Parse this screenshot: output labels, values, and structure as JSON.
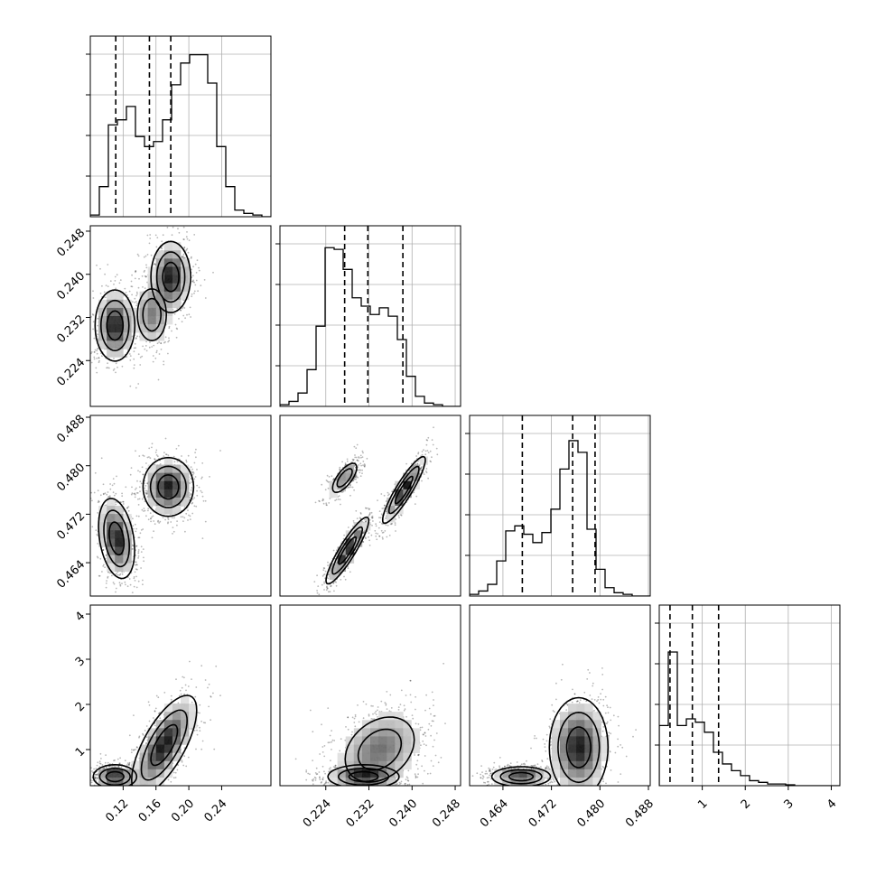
{
  "chart_data": {
    "type": "corner",
    "variables": [
      {
        "range": [
          0.08,
          0.3
        ],
        "ticks": [
          0.12,
          0.16,
          0.2,
          0.24
        ],
        "tick_labels": [
          "0.12",
          "0.16",
          "0.20",
          "0.24"
        ],
        "quantiles": [
          0.111,
          0.152,
          0.178
        ],
        "hist": [
          0.01,
          0.18,
          0.55,
          0.58,
          0.66,
          0.48,
          0.42,
          0.45,
          0.58,
          0.79,
          0.92,
          0.97,
          0.97,
          0.8,
          0.42,
          0.18,
          0.04,
          0.02,
          0.01,
          0.0
        ]
      },
      {
        "range": [
          0.2155,
          0.249
        ],
        "ticks": [
          0.224,
          0.232,
          0.24,
          0.248
        ],
        "tick_labels": [
          "0.224",
          "0.232",
          "0.240",
          "0.248"
        ],
        "quantiles": [
          0.2275,
          0.2318,
          0.2383
        ],
        "hist": [
          0.01,
          0.03,
          0.08,
          0.22,
          0.48,
          0.95,
          0.94,
          0.82,
          0.65,
          0.6,
          0.55,
          0.59,
          0.54,
          0.4,
          0.18,
          0.06,
          0.02,
          0.01,
          0.0,
          0.0
        ]
      },
      {
        "range": [
          0.4585,
          0.4883
        ],
        "ticks": [
          0.464,
          0.472,
          0.48,
          0.488
        ],
        "tick_labels": [
          "0.464",
          "0.472",
          "0.480",
          "0.488"
        ],
        "quantiles": [
          0.4672,
          0.4755,
          0.4792
        ],
        "hist": [
          0.01,
          0.03,
          0.07,
          0.21,
          0.39,
          0.42,
          0.37,
          0.32,
          0.38,
          0.52,
          0.76,
          0.93,
          0.86,
          0.4,
          0.16,
          0.05,
          0.02,
          0.01,
          0.0,
          0.0
        ]
      },
      {
        "range": [
          0.0,
          4.2
        ],
        "ticks": [
          1,
          2,
          3,
          4
        ],
        "tick_labels": [
          "1",
          "2",
          "3",
          "4"
        ],
        "quantiles": [
          0.25,
          0.77,
          1.38
        ],
        "hist": [
          0.36,
          0.8,
          0.36,
          0.4,
          0.38,
          0.32,
          0.2,
          0.13,
          0.09,
          0.06,
          0.03,
          0.02,
          0.01,
          0.01,
          0.005,
          0.0,
          0.0,
          0.0,
          0.0,
          0.0
        ],
        "row_ticks": [
          1,
          2,
          3,
          4
        ],
        "row_tick_labels": [
          "1",
          "2",
          "3",
          "4"
        ],
        "row_range": [
          0.2,
          4.2
        ]
      }
    ],
    "pairs": [
      {
        "x": 0,
        "y": 1,
        "clusters": [
          {
            "cx": 0.11,
            "cy": 0.2305,
            "sx": 0.011,
            "sy": 0.003,
            "rho": 0.0,
            "w": 1.0
          },
          {
            "cx": 0.178,
            "cy": 0.2395,
            "sx": 0.011,
            "sy": 0.003,
            "rho": 0.0,
            "w": 1.0
          },
          {
            "cx": 0.155,
            "cy": 0.2325,
            "sx": 0.011,
            "sy": 0.003,
            "rho": 0.0,
            "w": 0.55
          }
        ]
      },
      {
        "x": 0,
        "y": 2,
        "clusters": [
          {
            "cx": 0.112,
            "cy": 0.468,
            "sx": 0.01,
            "sy": 0.003,
            "rho": -0.3,
            "w": 1.0
          },
          {
            "cx": 0.175,
            "cy": 0.4765,
            "sx": 0.014,
            "sy": 0.0022,
            "rho": 0.0,
            "w": 1.0
          }
        ]
      },
      {
        "x": 1,
        "y": 2,
        "clusters": [
          {
            "cx": 0.228,
            "cy": 0.466,
            "sx": 0.0018,
            "sy": 0.0025,
            "rho": 0.9,
            "w": 1.0
          },
          {
            "cx": 0.2385,
            "cy": 0.476,
            "sx": 0.0018,
            "sy": 0.0025,
            "rho": 0.9,
            "w": 1.0
          },
          {
            "cx": 0.2275,
            "cy": 0.478,
            "sx": 0.0014,
            "sy": 0.0015,
            "rho": 0.7,
            "w": 0.55
          }
        ]
      },
      {
        "x": 0,
        "y": 3,
        "clusters": [
          {
            "cx": 0.11,
            "cy": 0.4,
            "sx": 0.012,
            "sy": 0.12,
            "rho": 0.0,
            "w": 1.0
          },
          {
            "cx": 0.17,
            "cy": 1.1,
            "sx": 0.018,
            "sy": 0.5,
            "rho": 0.7,
            "w": 1.0
          }
        ]
      },
      {
        "x": 1,
        "y": 3,
        "clusters": [
          {
            "cx": 0.231,
            "cy": 0.4,
            "sx": 0.003,
            "sy": 0.12,
            "rho": 0.0,
            "w": 1.0
          },
          {
            "cx": 0.234,
            "cy": 1.0,
            "sx": 0.004,
            "sy": 0.45,
            "rho": 0.3,
            "w": 0.75
          }
        ]
      },
      {
        "x": 2,
        "y": 3,
        "clusters": [
          {
            "cx": 0.467,
            "cy": 0.4,
            "sx": 0.0022,
            "sy": 0.1,
            "rho": 0.0,
            "w": 1.0
          },
          {
            "cx": 0.4765,
            "cy": 1.05,
            "sx": 0.0022,
            "sy": 0.5,
            "rho": 0.0,
            "w": 1.0
          }
        ]
      }
    ],
    "colors": {
      "line": "#000000",
      "grid": "#b0b0b0",
      "scatter": "#000000"
    }
  }
}
